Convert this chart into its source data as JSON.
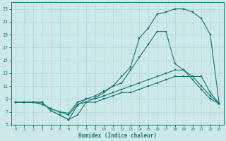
{
  "xlabel": "Humidex (Indice chaleur)",
  "bg_color": "#cde8e8",
  "grid_color": "#b0d8d8",
  "line_color": "#1a7878",
  "xlim": [
    -0.5,
    23.5
  ],
  "ylim": [
    5,
    24
  ],
  "xticks": [
    0,
    1,
    2,
    3,
    4,
    5,
    6,
    7,
    8,
    9,
    10,
    11,
    12,
    13,
    14,
    15,
    16,
    17,
    18,
    19,
    20,
    21,
    22,
    23
  ],
  "yticks": [
    5,
    7,
    9,
    11,
    13,
    15,
    17,
    19,
    21,
    23
  ],
  "curves": [
    [
      8.5,
      8.5,
      8.5,
      8.5,
      7.2,
      6.5,
      5.8,
      6.5,
      8.5,
      9.2,
      10.0,
      11.0,
      12.5,
      14.0,
      18.5,
      20.0,
      22.2,
      22.5,
      23.0,
      23.0,
      22.5,
      21.5,
      19.0,
      8.3
    ],
    [
      8.5,
      8.5,
      8.5,
      8.5,
      7.2,
      6.5,
      5.8,
      8.0,
      9.0,
      9.5,
      10.2,
      11.0,
      11.5,
      13.5,
      15.5,
      17.5,
      19.5,
      19.5,
      14.5,
      13.5,
      12.0,
      10.5,
      9.0,
      8.3
    ],
    [
      8.5,
      8.5,
      8.5,
      8.2,
      7.5,
      7.0,
      6.8,
      8.5,
      9.0,
      9.0,
      9.5,
      10.0,
      10.5,
      11.0,
      11.5,
      12.0,
      12.5,
      13.0,
      13.5,
      13.5,
      12.5,
      12.5,
      10.0,
      8.3
    ],
    [
      8.5,
      8.5,
      8.5,
      8.2,
      7.5,
      7.0,
      6.5,
      8.2,
      8.5,
      8.5,
      9.0,
      9.5,
      10.0,
      10.0,
      10.5,
      11.0,
      11.5,
      12.0,
      12.5,
      12.5,
      12.5,
      11.0,
      9.5,
      8.3
    ]
  ]
}
